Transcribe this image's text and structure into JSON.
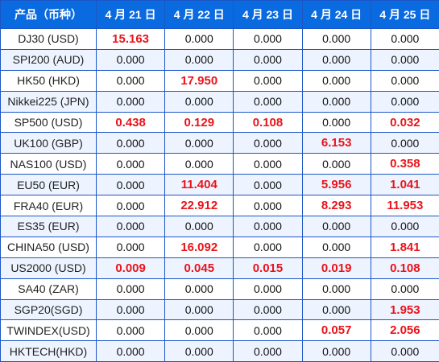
{
  "headers": [
    "产品（币种）",
    "4 月 21 日",
    "4 月 22 日",
    "4 月 23 日",
    "4 月 24 日",
    "4 月 25 日"
  ],
  "colors": {
    "header_bg": "#0a6ae0",
    "border": "#1c56c6",
    "highlight": "#e8141b",
    "stripe": "#eef4ff"
  },
  "rows": [
    {
      "name": "DJ30 (USD)",
      "values": [
        "15.163",
        "0.000",
        "0.000",
        "0.000",
        "0.000"
      ]
    },
    {
      "name": "SPI200 (AUD)",
      "values": [
        "0.000",
        "0.000",
        "0.000",
        "0.000",
        "0.000"
      ]
    },
    {
      "name": "HK50 (HKD)",
      "values": [
        "0.000",
        "17.950",
        "0.000",
        "0.000",
        "0.000"
      ]
    },
    {
      "name": "Nikkei225 (JPN)",
      "values": [
        "0.000",
        "0.000",
        "0.000",
        "0.000",
        "0.000"
      ]
    },
    {
      "name": "SP500 (USD)",
      "values": [
        "0.438",
        "0.129",
        "0.108",
        "0.000",
        "0.032"
      ]
    },
    {
      "name": "UK100 (GBP)",
      "values": [
        "0.000",
        "0.000",
        "0.000",
        "6.153",
        "0.000"
      ]
    },
    {
      "name": "NAS100 (USD)",
      "values": [
        "0.000",
        "0.000",
        "0.000",
        "0.000",
        "0.358"
      ]
    },
    {
      "name": "EU50 (EUR)",
      "values": [
        "0.000",
        "11.404",
        "0.000",
        "5.956",
        "1.041"
      ]
    },
    {
      "name": "FRA40 (EUR)",
      "values": [
        "0.000",
        "22.912",
        "0.000",
        "8.293",
        "11.953"
      ]
    },
    {
      "name": "ES35 (EUR)",
      "values": [
        "0.000",
        "0.000",
        "0.000",
        "0.000",
        "0.000"
      ]
    },
    {
      "name": "CHINA50 (USD)",
      "values": [
        "0.000",
        "16.092",
        "0.000",
        "0.000",
        "1.841"
      ]
    },
    {
      "name": "US2000 (USD)",
      "values": [
        "0.009",
        "0.045",
        "0.015",
        "0.019",
        "0.108"
      ]
    },
    {
      "name": "SA40 (ZAR)",
      "values": [
        "0.000",
        "0.000",
        "0.000",
        "0.000",
        "0.000"
      ]
    },
    {
      "name": "SGP20(SGD)",
      "values": [
        "0.000",
        "0.000",
        "0.000",
        "0.000",
        "1.953"
      ]
    },
    {
      "name": "TWINDEX(USD)",
      "values": [
        "0.000",
        "0.000",
        "0.000",
        "0.057",
        "2.056"
      ]
    },
    {
      "name": "HKTECH(HKD)",
      "values": [
        "0.000",
        "0.000",
        "0.000",
        "0.000",
        "0.000"
      ]
    }
  ]
}
